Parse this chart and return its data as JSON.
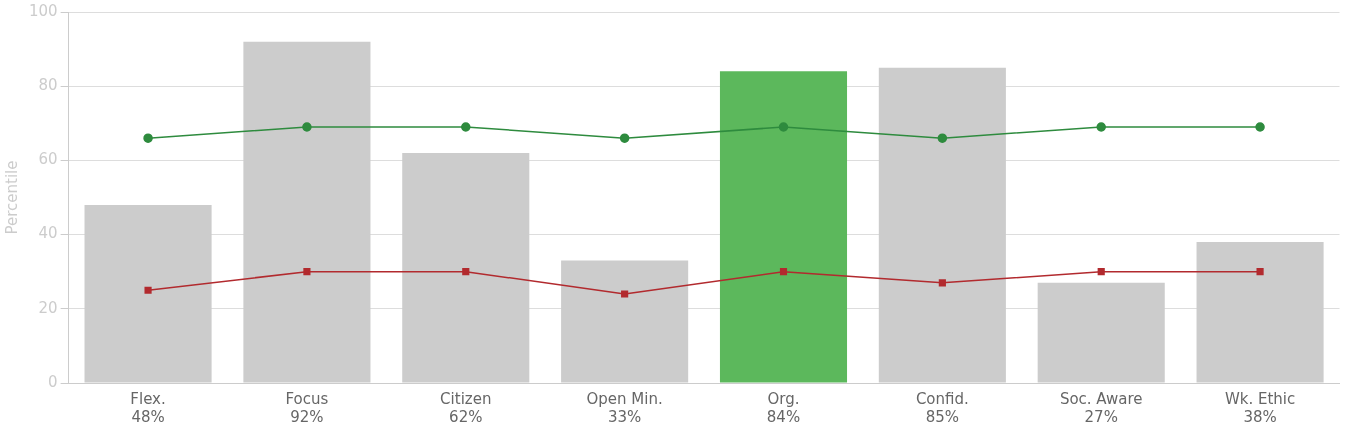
{
  "chart_data": {
    "type": "bar",
    "ylabel": "Percentile",
    "categories": [
      "Flex.",
      "Focus",
      "Citizen",
      "Open Min.",
      "Org.",
      "Confid.",
      "Soc. Aware",
      "Wk. Ethic"
    ],
    "ylim": [
      0,
      100
    ],
    "yticks": [
      0,
      20,
      40,
      60,
      80,
      100
    ],
    "grid": "y",
    "legend": false,
    "series": [
      {
        "colors": [
          "#cccccc",
          "#cccccc",
          "#cccccc",
          "#cccccc",
          "#5cb85c",
          "#cccccc",
          "#cccccc",
          "#cccccc"
        ],
        "values": [
          48,
          92,
          62,
          33,
          84,
          85,
          27,
          38
        ],
        "value_labels": [
          "48%",
          "92%",
          "62%",
          "33%",
          "84%",
          "85%",
          "27%",
          "38%"
        ]
      },
      {
        "type": "line",
        "color": "#2e8b3e",
        "marker": "circle",
        "values": [
          66,
          69,
          69,
          66,
          69,
          66,
          69,
          69
        ]
      },
      {
        "type": "line",
        "color": "#b22a2e",
        "marker": "square",
        "values": [
          25,
          30,
          30,
          24,
          30,
          27,
          30,
          30
        ]
      }
    ]
  }
}
